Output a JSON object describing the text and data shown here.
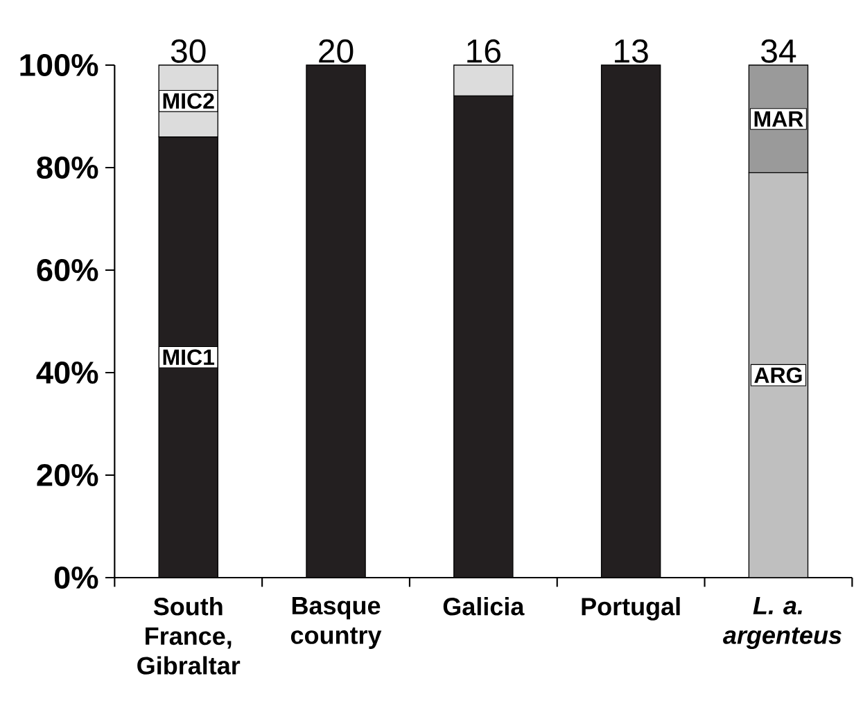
{
  "chart_data": {
    "type": "bar",
    "stacked": true,
    "categories": [
      "South France, Gibraltar",
      "Basque country",
      "Galicia",
      "Portugal",
      "*L. a. argenteus*"
    ],
    "series": [
      {
        "name": "MIC1",
        "color": "#231f20",
        "values": [
          86,
          100,
          94,
          100,
          null
        ]
      },
      {
        "name": "MIC2",
        "color": "#dcdcdc",
        "values": [
          14,
          null,
          6,
          null,
          null
        ]
      },
      {
        "name": "ARG",
        "color": "#bfbfbf",
        "values": [
          null,
          null,
          null,
          null,
          79
        ]
      },
      {
        "name": "MAR",
        "color": "#9a9a9a",
        "values": [
          null,
          null,
          null,
          null,
          21
        ]
      }
    ],
    "ylim": [
      0,
      100
    ],
    "yticks": [
      {
        "value": 0,
        "label": "0%"
      },
      {
        "value": 20,
        "label": "20%"
      },
      {
        "value": 40,
        "label": "40%"
      },
      {
        "value": 60,
        "label": "60%"
      },
      {
        "value": 80,
        "label": "80%"
      },
      {
        "value": 100,
        "label": "100%"
      }
    ],
    "annotations": [
      "30",
      "20",
      "16",
      "13",
      "34"
    ]
  }
}
